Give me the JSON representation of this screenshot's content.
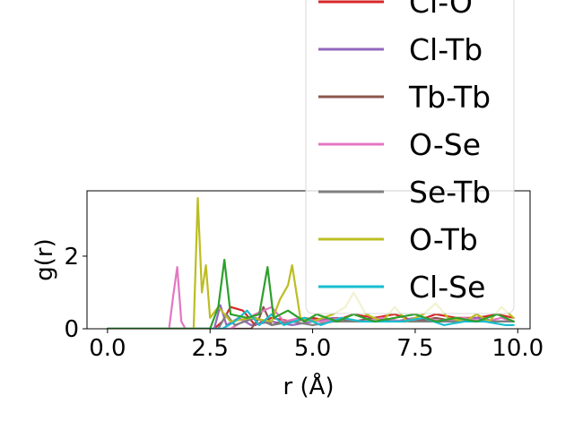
{
  "chart_data": {
    "type": "line",
    "xlabel": "r (Å)",
    "ylabel": "g(r)",
    "xlim": [
      -0.5,
      10.3
    ],
    "ylim": [
      0,
      3.8
    ],
    "xticks": [
      0.0,
      2.5,
      5.0,
      7.5,
      10.0
    ],
    "xtick_labels": [
      "0.0",
      "2.5",
      "5.0",
      "7.5",
      "10.0"
    ],
    "yticks": [
      0,
      2
    ],
    "ytick_labels": [
      "0",
      "2"
    ],
    "legend_position": "upper-right",
    "series": [
      {
        "name": "Cl-O",
        "color": "#d62728",
        "visible_in_legend": true,
        "points": [
          [
            0,
            0
          ],
          [
            1,
            0
          ],
          [
            2,
            0
          ],
          [
            2.6,
            0
          ],
          [
            2.8,
            0.2
          ],
          [
            3.0,
            0.6
          ],
          [
            3.3,
            0.5
          ],
          [
            3.6,
            0.1
          ],
          [
            4.0,
            0.3
          ],
          [
            4.5,
            0.2
          ],
          [
            5.0,
            0.3
          ],
          [
            5.5,
            0.2
          ],
          [
            6.0,
            0.4
          ],
          [
            6.5,
            0.3
          ],
          [
            7.0,
            0.4
          ],
          [
            7.5,
            0.2
          ],
          [
            8.0,
            0.4
          ],
          [
            8.5,
            0.3
          ],
          [
            9.0,
            0.3
          ],
          [
            9.5,
            0.4
          ],
          [
            9.9,
            0.3
          ]
        ]
      },
      {
        "name": "Cl-Tb",
        "color": "#9467bd",
        "visible_in_legend": true,
        "points": [
          [
            0,
            0
          ],
          [
            2,
            0
          ],
          [
            2.6,
            0
          ],
          [
            2.75,
            0.65
          ],
          [
            2.9,
            0.1
          ],
          [
            3.2,
            0.3
          ],
          [
            3.5,
            0.1
          ],
          [
            4.0,
            0.2
          ],
          [
            4.5,
            0.1
          ],
          [
            5.0,
            0.2
          ],
          [
            5.5,
            0.3
          ],
          [
            6.0,
            0.2
          ],
          [
            6.5,
            0.3
          ],
          [
            7.0,
            0.2
          ],
          [
            7.5,
            0.3
          ],
          [
            8.0,
            0.2
          ],
          [
            8.5,
            0.2
          ],
          [
            9.0,
            0.3
          ],
          [
            9.5,
            0.2
          ],
          [
            9.9,
            0.2
          ]
        ]
      },
      {
        "name": "Tb-Tb",
        "color": "#8c564b",
        "visible_in_legend": true,
        "points": [
          [
            0,
            0
          ],
          [
            3.5,
            0
          ],
          [
            3.7,
            0.3
          ],
          [
            3.8,
            0.6
          ],
          [
            4.0,
            0.1
          ],
          [
            4.3,
            0.2
          ],
          [
            4.8,
            0.3
          ],
          [
            5.2,
            0.2
          ],
          [
            5.6,
            0.3
          ],
          [
            6.0,
            0.2
          ],
          [
            6.5,
            0.3
          ],
          [
            7.0,
            0.2
          ],
          [
            7.5,
            0.2
          ],
          [
            8.0,
            0.3
          ],
          [
            8.5,
            0.2
          ],
          [
            9.0,
            0.2
          ],
          [
            9.5,
            0.2
          ],
          [
            9.9,
            0.2
          ]
        ]
      },
      {
        "name": "O-Se",
        "color": "#e377c2",
        "visible_in_legend": true,
        "points": [
          [
            0,
            0
          ],
          [
            1.5,
            0
          ],
          [
            1.6,
            0.9
          ],
          [
            1.7,
            1.7
          ],
          [
            1.8,
            0.2
          ],
          [
            1.9,
            0
          ],
          [
            3.0,
            0
          ],
          [
            3.3,
            0.2
          ],
          [
            3.6,
            0.4
          ],
          [
            4.0,
            0.6
          ],
          [
            4.3,
            0.2
          ],
          [
            4.7,
            0.3
          ],
          [
            5.2,
            0.2
          ],
          [
            5.7,
            0.3
          ],
          [
            6.2,
            0.2
          ],
          [
            6.7,
            0.3
          ],
          [
            7.2,
            0.2
          ],
          [
            7.7,
            0.3
          ],
          [
            8.2,
            0.2
          ],
          [
            8.7,
            0.3
          ],
          [
            9.2,
            0.2
          ],
          [
            9.6,
            0.3
          ],
          [
            9.9,
            0.2
          ]
        ]
      },
      {
        "name": "Se-Tb",
        "color": "#7f7f7f",
        "visible_in_legend": true,
        "points": [
          [
            0,
            0
          ],
          [
            2.7,
            0
          ],
          [
            2.9,
            0.4
          ],
          [
            3.1,
            0.1
          ],
          [
            3.6,
            0.3
          ],
          [
            4.0,
            0.1
          ],
          [
            4.5,
            0.2
          ],
          [
            5.0,
            0.1
          ],
          [
            5.5,
            0.2
          ],
          [
            6.0,
            0.2
          ],
          [
            6.5,
            0.2
          ],
          [
            7.0,
            0.2
          ],
          [
            7.5,
            0.2
          ],
          [
            8.0,
            0.2
          ],
          [
            8.5,
            0.2
          ],
          [
            9.0,
            0.2
          ],
          [
            9.5,
            0.2
          ],
          [
            9.9,
            0.2
          ]
        ]
      },
      {
        "name": "O-Tb",
        "color": "#bcbd22",
        "visible_in_legend": true,
        "points": [
          [
            0,
            0
          ],
          [
            2.1,
            0
          ],
          [
            2.2,
            3.6
          ],
          [
            2.3,
            1.0
          ],
          [
            2.4,
            1.75
          ],
          [
            2.5,
            0.3
          ],
          [
            2.7,
            0.6
          ],
          [
            3.0,
            0.2
          ],
          [
            3.5,
            0.3
          ],
          [
            4.0,
            0.2
          ],
          [
            4.2,
            0.8
          ],
          [
            4.4,
            1.2
          ],
          [
            4.5,
            1.75
          ],
          [
            4.7,
            0.3
          ],
          [
            5.0,
            0.2
          ],
          [
            5.5,
            0.4
          ],
          [
            5.8,
            0.6
          ],
          [
            6.0,
            1.0
          ],
          [
            6.3,
            0.4
          ],
          [
            6.7,
            0.2
          ],
          [
            7.0,
            0.6
          ],
          [
            7.3,
            0.2
          ],
          [
            7.7,
            0.4
          ],
          [
            8.0,
            0.7
          ],
          [
            8.3,
            0.3
          ],
          [
            8.7,
            0.2
          ],
          [
            9.0,
            0.4
          ],
          [
            9.3,
            0.2
          ],
          [
            9.6,
            0.6
          ],
          [
            9.9,
            0.3
          ]
        ]
      },
      {
        "name": "Cl-Se",
        "color": "#17becf",
        "visible_in_legend": true,
        "points": [
          [
            0,
            0
          ],
          [
            2.8,
            0
          ],
          [
            3.1,
            0.2
          ],
          [
            3.4,
            0.5
          ],
          [
            3.7,
            0.1
          ],
          [
            4.0,
            0.4
          ],
          [
            4.3,
            0.1
          ],
          [
            4.8,
            0.3
          ],
          [
            5.2,
            0.1
          ],
          [
            5.7,
            0.3
          ],
          [
            6.2,
            0.2
          ],
          [
            6.7,
            0.2
          ],
          [
            7.2,
            0.2
          ],
          [
            7.7,
            0.3
          ],
          [
            8.2,
            0.1
          ],
          [
            8.7,
            0.2
          ],
          [
            9.2,
            0.2
          ],
          [
            9.7,
            0.1
          ],
          [
            9.9,
            0.1
          ]
        ]
      },
      {
        "name": "",
        "color": "#2ca02c",
        "visible_in_legend": false,
        "points": [
          [
            0,
            0
          ],
          [
            2.5,
            0
          ],
          [
            2.7,
            0.6
          ],
          [
            2.85,
            1.9
          ],
          [
            3.0,
            0.4
          ],
          [
            3.4,
            0.3
          ],
          [
            3.7,
            0.4
          ],
          [
            3.9,
            1.7
          ],
          [
            4.05,
            0.3
          ],
          [
            4.4,
            0.5
          ],
          [
            4.8,
            0.2
          ],
          [
            5.1,
            0.4
          ],
          [
            5.6,
            0.2
          ],
          [
            6.0,
            0.4
          ],
          [
            6.5,
            0.2
          ],
          [
            7.0,
            0.3
          ],
          [
            7.5,
            0.4
          ],
          [
            8.0,
            0.2
          ],
          [
            8.5,
            0.3
          ],
          [
            9.0,
            0.2
          ],
          [
            9.5,
            0.4
          ],
          [
            9.9,
            0.2
          ]
        ]
      }
    ]
  }
}
